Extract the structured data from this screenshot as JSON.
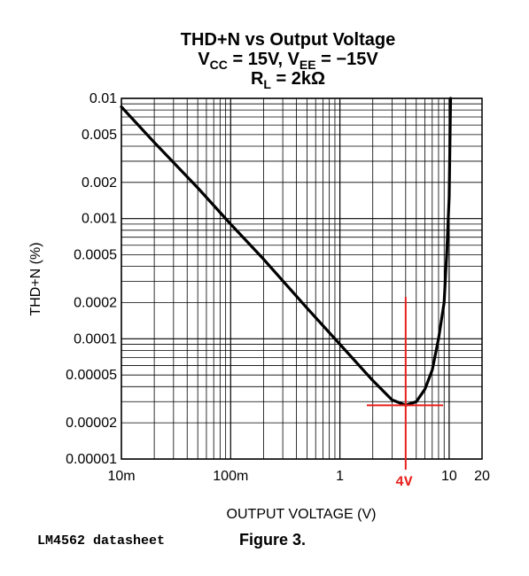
{
  "chart_data": {
    "type": "line",
    "title": "THD+N vs Output Voltage",
    "subtitle_line1": {
      "a": "V",
      "a_sub": "CC",
      "b": " = 15V, V",
      "b_sub": "EE",
      "c": " = −15V"
    },
    "subtitle_line2": {
      "a": "R",
      "a_sub": "L",
      "b": " = 2kΩ"
    },
    "xlabel": "OUTPUT VOLTAGE (V)",
    "ylabel": "THD+N (%)",
    "x_scale": "log",
    "y_scale": "log",
    "xlim": [
      0.01,
      20
    ],
    "ylim": [
      1e-05,
      0.01
    ],
    "grid": true,
    "x_ticks": [
      {
        "value": 0.01,
        "label": "10m"
      },
      {
        "value": 0.1,
        "label": "100m"
      },
      {
        "value": 1,
        "label": "1"
      },
      {
        "value": 10,
        "label": "10"
      },
      {
        "value": 20,
        "label": "20"
      }
    ],
    "y_ticks": [
      {
        "value": 0.01,
        "label": "0.01"
      },
      {
        "value": 0.005,
        "label": "0.005"
      },
      {
        "value": 0.002,
        "label": "0.002"
      },
      {
        "value": 0.001,
        "label": "0.001"
      },
      {
        "value": 0.0005,
        "label": "0.0005"
      },
      {
        "value": 0.0002,
        "label": "0.0002"
      },
      {
        "value": 0.0001,
        "label": "0.0001"
      },
      {
        "value": 5e-05,
        "label": "0.00005"
      },
      {
        "value": 2e-05,
        "label": "0.00002"
      },
      {
        "value": 1e-05,
        "label": "0.00001"
      }
    ],
    "series": [
      {
        "color": "#000000",
        "x": [
          0.01,
          0.02,
          0.05,
          0.1,
          0.2,
          0.5,
          1,
          2,
          3,
          4,
          5,
          6,
          7,
          8,
          9,
          9.5,
          10,
          10.3
        ],
        "y": [
          0.0085,
          0.0043,
          0.0018,
          0.0009,
          0.00046,
          0.00018,
          9e-05,
          4.5e-05,
          3.1e-05,
          2.8e-05,
          3e-05,
          3.8e-05,
          5.5e-05,
          0.0001,
          0.0002,
          0.0005,
          0.0015,
          0.01
        ]
      }
    ],
    "annotations": [
      {
        "type": "crosshair",
        "x": 4,
        "y": 2.8e-05,
        "label": "4V",
        "color": "#e8201c"
      }
    ]
  },
  "footer": {
    "source": "LM4562 datasheet",
    "figure": "Figure 3."
  }
}
